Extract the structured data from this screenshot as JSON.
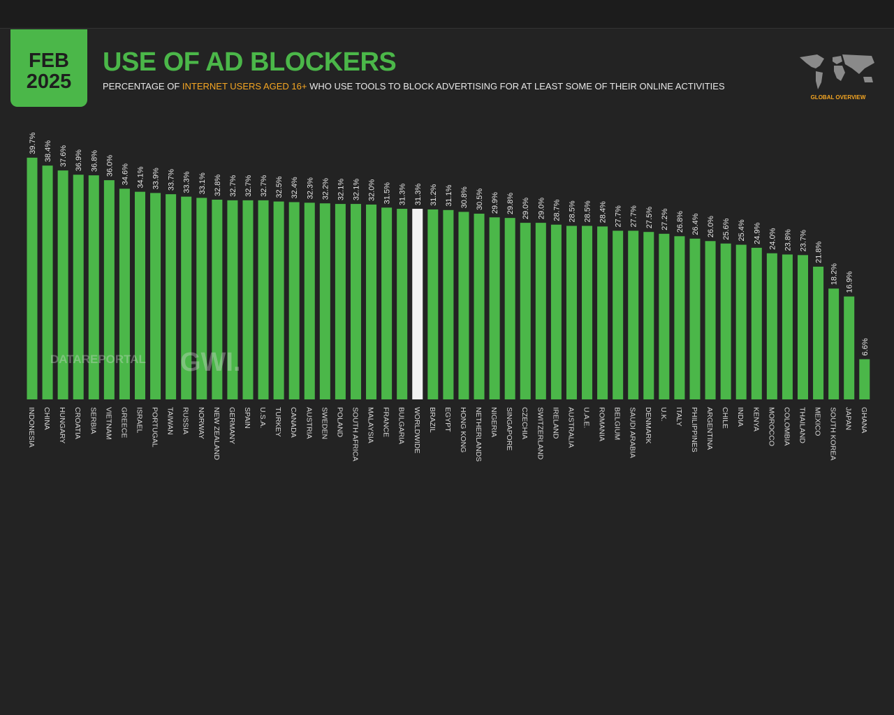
{
  "header": {
    "date_line1": "FEB",
    "date_line2": "2025",
    "title": "USE OF AD BLOCKERS",
    "subtitle_pre": "PERCENTAGE OF ",
    "subtitle_highlight": "INTERNET USERS AGED 16+",
    "subtitle_post": " WHO USE TOOLS TO BLOCK ADVERTISING FOR AT LEAST SOME OF THEIR ONLINE ACTIVITIES",
    "badge": "GLOBAL OVERVIEW"
  },
  "watermark": {
    "left": "DATAREPORTAL",
    "right": "GWI."
  },
  "colors": {
    "bar": "#4bb749",
    "highlight": "#f2f2f2",
    "accent": "#f5a623",
    "background": "#232323"
  },
  "chart_data": {
    "type": "bar",
    "title": "USE OF AD BLOCKERS",
    "ylabel": "Percentage of internet users aged 16+",
    "ylim": [
      0,
      40
    ],
    "highlight_category": "WORLDWIDE",
    "value_suffix": "%",
    "categories": [
      "INDONESIA",
      "CHINA",
      "HUNGARY",
      "CROATIA",
      "SERBIA",
      "VIETNAM",
      "GREECE",
      "ISRAEL",
      "PORTUGAL",
      "TAIWAN",
      "RUSSIA",
      "NORWAY",
      "NEW ZEALAND",
      "GERMANY",
      "SPAIN",
      "U.S.A.",
      "TURKEY",
      "CANADA",
      "AUSTRIA",
      "SWEDEN",
      "POLAND",
      "SOUTH AFRICA",
      "MALAYSIA",
      "FRANCE",
      "BULGARIA",
      "WORLDWIDE",
      "BRAZIL",
      "EGYPT",
      "HONG KONG",
      "NETHERLANDS",
      "NIGERIA",
      "SINGAPORE",
      "CZECHIA",
      "SWITZERLAND",
      "IRELAND",
      "AUSTRALIA",
      "U.A.E.",
      "ROMANIA",
      "BELGIUM",
      "SAUDI ARABIA",
      "DENMARK",
      "U.K.",
      "ITALY",
      "PHILIPPINES",
      "ARGENTINA",
      "CHILE",
      "INDIA",
      "KENYA",
      "MOROCCO",
      "COLOMBIA",
      "THAILAND",
      "MEXICO",
      "SOUTH KOREA",
      "JAPAN",
      "GHANA"
    ],
    "values": [
      39.7,
      38.4,
      37.6,
      36.9,
      36.8,
      36.0,
      34.6,
      34.1,
      33.9,
      33.7,
      33.3,
      33.1,
      32.8,
      32.7,
      32.7,
      32.7,
      32.5,
      32.4,
      32.3,
      32.2,
      32.1,
      32.1,
      32.0,
      31.5,
      31.3,
      31.3,
      31.2,
      31.1,
      30.8,
      30.5,
      29.9,
      29.8,
      29.0,
      29.0,
      28.7,
      28.5,
      28.5,
      28.4,
      27.7,
      27.7,
      27.5,
      27.2,
      26.8,
      26.4,
      26.0,
      25.6,
      25.4,
      24.9,
      24.0,
      23.8,
      23.7,
      21.8,
      18.2,
      16.9,
      6.6
    ]
  }
}
